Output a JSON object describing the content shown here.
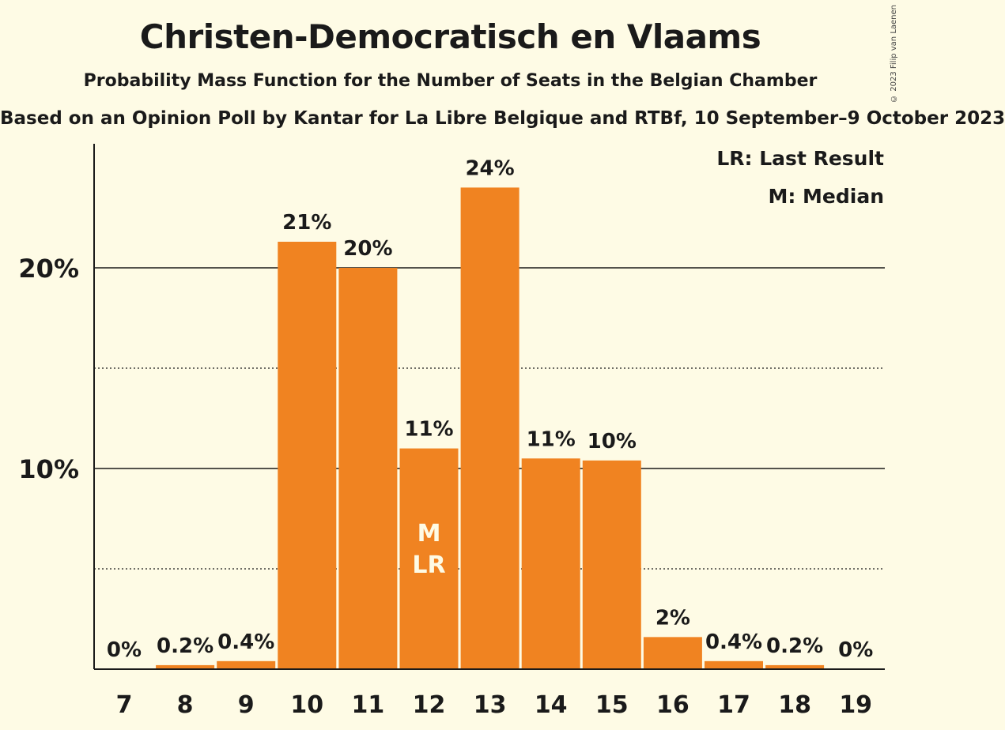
{
  "header": {
    "title": "Christen-Democratisch en Vlaams",
    "subtitle": "Probability Mass Function for the Number of Seats in the Belgian Chamber",
    "source": "Based on an Opinion Poll by Kantar for La Libre Belgique and RTBf, 10 September–9 October 2023",
    "copyright": "© 2023 Filip van Laenen"
  },
  "colors": {
    "bar": "#f08321",
    "background": "#fefbe5",
    "text": "#1a1a1a"
  },
  "chart_data": {
    "type": "bar",
    "title": "Christen-Democratisch en Vlaams",
    "subtitle": "Probability Mass Function for the Number of Seats in the Belgian Chamber",
    "categories": [
      "7",
      "8",
      "9",
      "10",
      "11",
      "12",
      "13",
      "14",
      "15",
      "16",
      "17",
      "18",
      "19"
    ],
    "values": [
      0,
      0.2,
      0.4,
      21.3,
      20.0,
      11.0,
      24.0,
      10.5,
      10.4,
      1.6,
      0.4,
      0.2,
      0
    ],
    "labels": [
      "0%",
      "0.2%",
      "0.4%",
      "21%",
      "20%",
      "11%",
      "24%",
      "11%",
      "10%",
      "2%",
      "0.4%",
      "0.2%",
      "0%"
    ],
    "ylim": [
      0,
      26
    ],
    "yticks": [
      {
        "value": 10,
        "label": "10%"
      },
      {
        "value": 20,
        "label": "20%"
      }
    ],
    "minor_gridlines": [
      5,
      15
    ],
    "grid": true,
    "legend_position": "top-right",
    "legend": [
      "LR: Last Result",
      "M: Median"
    ],
    "markers": [
      {
        "category": "12",
        "text": "M"
      },
      {
        "category": "12",
        "text": "LR"
      }
    ]
  }
}
